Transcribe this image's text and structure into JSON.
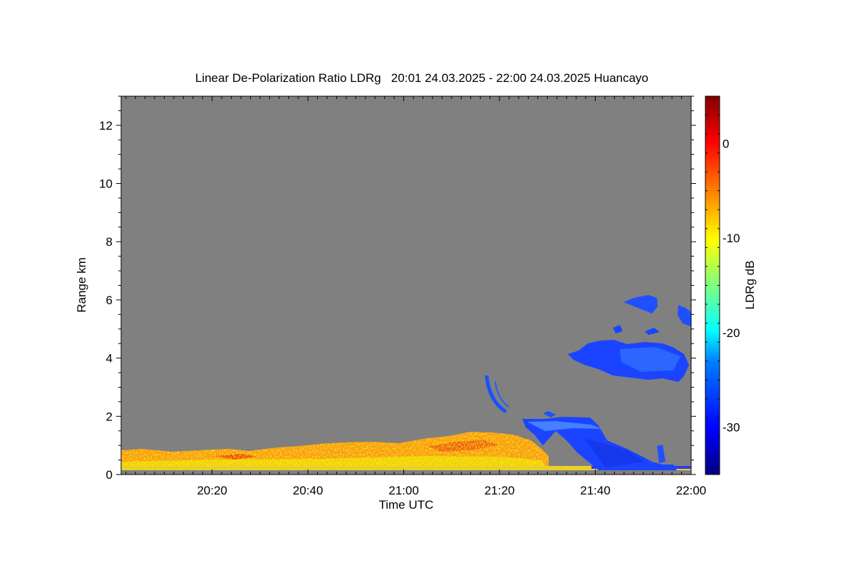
{
  "chart_data": {
    "type": "heatmap",
    "title": "Linear De-Polarization Ratio LDRg   20:01 24.03.2025 - 22:00 24.03.2025 Huancayo",
    "xlabel": "Time UTC",
    "ylabel": "Range km",
    "colorbar_label": "LDRg dB",
    "xlim": [
      "20:01",
      "22:00"
    ],
    "ylim": [
      0,
      13
    ],
    "clim": [
      -35,
      5
    ],
    "x_ticks": [
      "20:20",
      "20:40",
      "21:00",
      "21:20",
      "21:40",
      "22:00"
    ],
    "y_ticks": [
      0,
      2,
      4,
      6,
      8,
      10,
      12
    ],
    "colorbar_ticks": [
      0,
      -10,
      -20,
      -30
    ],
    "colormap": "jet",
    "background_color": "#808080",
    "colormap_stops": [
      "#000080",
      "#0000ff",
      "#0080ff",
      "#00ffff",
      "#80ff80",
      "#ffff00",
      "#ff8000",
      "#ff0000",
      "#800000"
    ],
    "features": [
      {
        "name": "boundary-layer aerosol",
        "time_range": [
          "20:01",
          "21:35"
        ],
        "range_km": [
          0.1,
          1.5
        ],
        "ldr_db": -7
      },
      {
        "name": "low cloud",
        "time_range": [
          "21:25",
          "21:59"
        ],
        "range_km": [
          0.1,
          1.9
        ],
        "ldr_db": -31
      },
      {
        "name": "mid cloud",
        "time_range": [
          "21:37",
          "21:59"
        ],
        "range_km": [
          3.3,
          4.6
        ],
        "ldr_db": -31
      },
      {
        "name": "upper cloud patches",
        "time_range": [
          "21:45",
          "22:00"
        ],
        "range_km": [
          5.0,
          6.0
        ],
        "ldr_db": -31
      },
      {
        "name": "arc streak",
        "time_range": [
          "21:17",
          "21:21"
        ],
        "range_km": [
          2.1,
          3.6
        ],
        "ldr_db": -31
      }
    ]
  }
}
